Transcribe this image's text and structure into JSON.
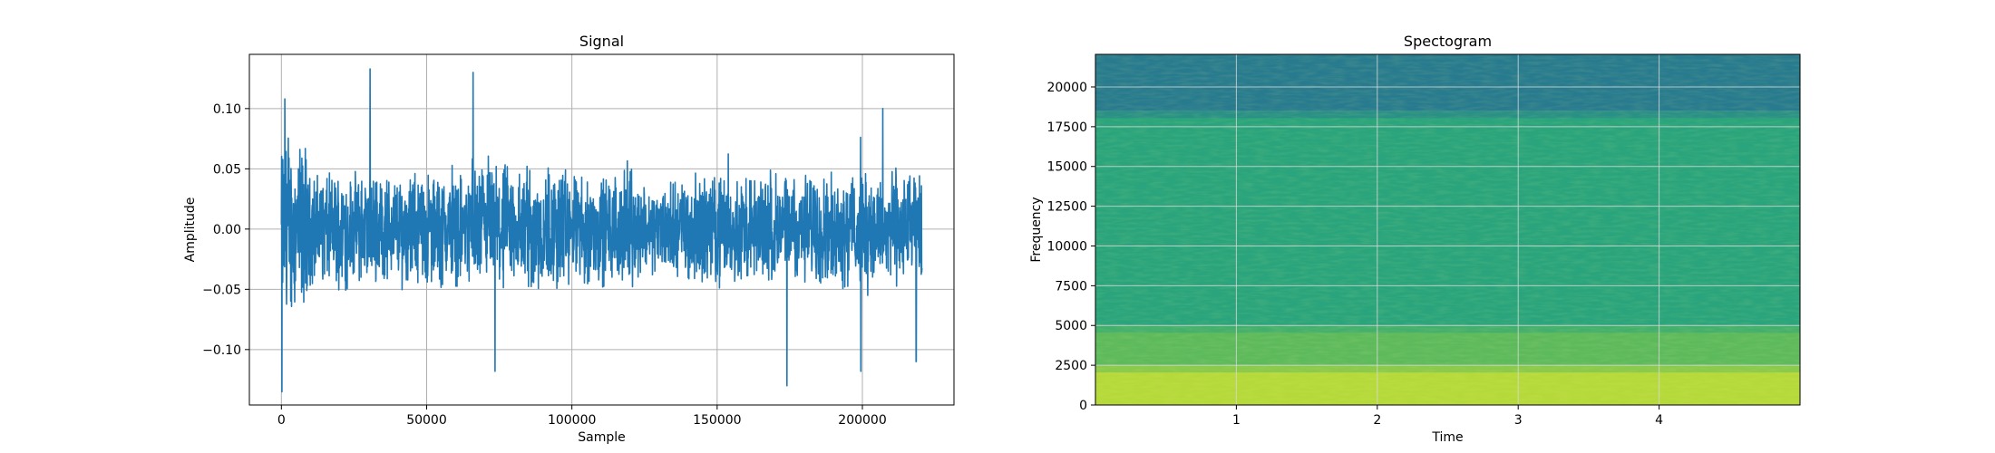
{
  "chart_data": [
    {
      "type": "line",
      "title": "Signal",
      "xlabel": "Sample",
      "ylabel": "Amplitude",
      "xlim": [
        -11025,
        231525
      ],
      "ylim": [
        -0.146,
        0.145
      ],
      "xticks": [
        0,
        50000,
        100000,
        150000,
        200000
      ],
      "xtick_labels": [
        "0",
        "50000",
        "100000",
        "150000",
        "200000"
      ],
      "yticks": [
        -0.1,
        -0.05,
        0.0,
        0.05,
        0.1
      ],
      "ytick_labels": [
        "−0.10",
        "−0.05",
        "0.00",
        "0.05",
        "0.10"
      ],
      "grid": true,
      "color": "#1f77b4",
      "series": [
        {
          "x_range": [
            0,
            220500
          ],
          "y_min": -0.135,
          "y_max": 0.133,
          "extrema": [
            {
              "x": 200,
              "y": -0.135
            },
            {
              "x": 1200,
              "y": 0.108
            },
            {
              "x": 30500,
              "y": 0.133
            },
            {
              "x": 66000,
              "y": 0.13
            },
            {
              "x": 73500,
              "y": -0.118
            },
            {
              "x": 174000,
              "y": -0.13
            },
            {
              "x": 199500,
              "y": -0.118
            },
            {
              "x": 207000,
              "y": 0.1
            },
            {
              "x": 218500,
              "y": -0.11
            }
          ]
        }
      ]
    },
    {
      "type": "heatmap",
      "title": "Spectogram",
      "xlabel": "Time",
      "ylabel": "Frequency",
      "xlim": [
        0,
        5.0
      ],
      "ylim": [
        0,
        22050
      ],
      "xticks": [
        1,
        2,
        3,
        4
      ],
      "xtick_labels": [
        "1",
        "2",
        "3",
        "4"
      ],
      "yticks": [
        0,
        2500,
        5000,
        7500,
        10000,
        12500,
        15000,
        17500,
        20000
      ],
      "ytick_labels": [
        "0",
        "2500",
        "5000",
        "7500",
        "10000",
        "12500",
        "15000",
        "17500",
        "20000"
      ],
      "grid": true,
      "colormap": "viridis",
      "bands": [
        {
          "freq_range": [
            0,
            2500
          ],
          "level": "high",
          "color": "#b5d93a"
        },
        {
          "freq_range": [
            2500,
            5000
          ],
          "level": "medium-high",
          "color": "#5dba5c"
        },
        {
          "freq_range": [
            5000,
            18500
          ],
          "level": "medium",
          "color": "#2aa47c"
        },
        {
          "freq_range": [
            18500,
            22050
          ],
          "level": "low",
          "color": "#287b8e"
        }
      ]
    }
  ]
}
